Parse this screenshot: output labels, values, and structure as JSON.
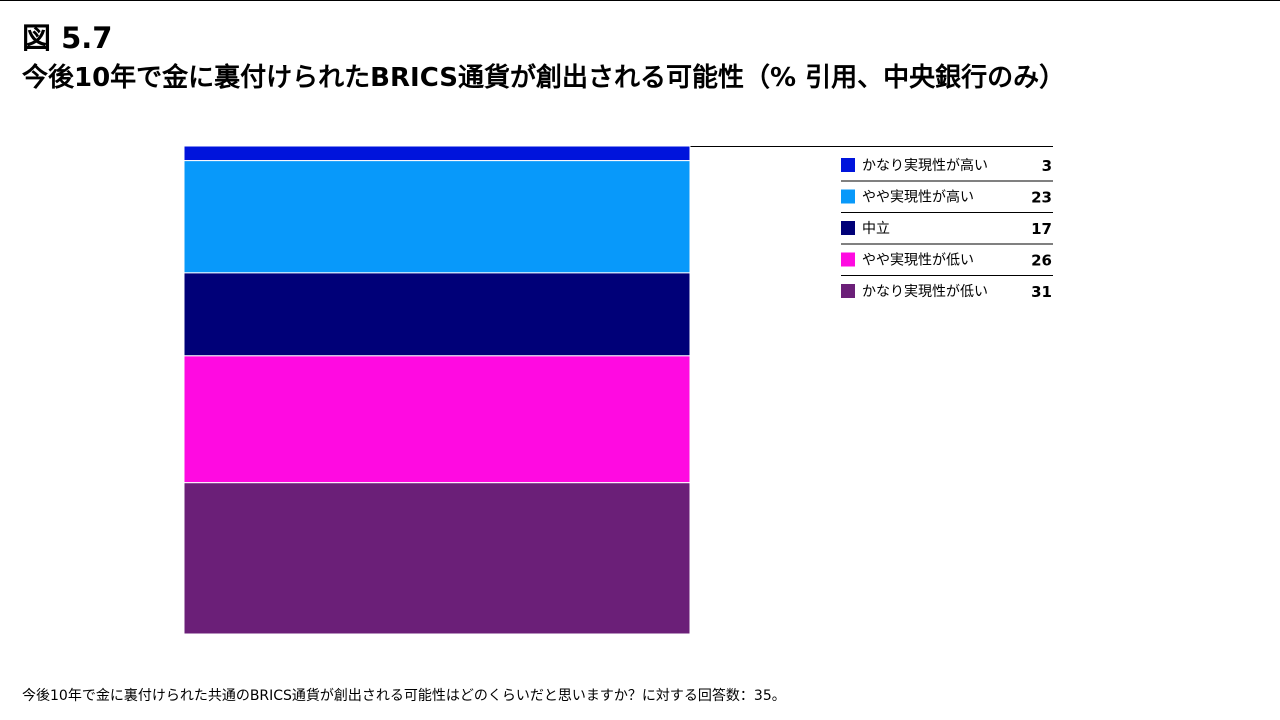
{
  "figure": {
    "label": "図 5.7",
    "title": "今後10年で金に裏付けられたBRICS通貨が創出される可能性（% 引用、中央銀行のみ）",
    "footnote": "今後10年で金に裏付けられた共通のBRICS通貨が創出される可能性はどのくらいだと思いますか？に対する回答数：35。"
  },
  "chart_data": {
    "type": "bar",
    "stacked": true,
    "orientation": "vertical",
    "title": "今後10年で金に裏付けられたBRICS通貨が創出される可能性（% 引用、中央銀行のみ）",
    "unit": "%",
    "categories": [
      ""
    ],
    "ylim": [
      0,
      100
    ],
    "grid": false,
    "legend_position": "right",
    "series": [
      {
        "name": "かなり実現性が高い",
        "values": [
          3
        ],
        "label": "3",
        "color": "#0014DC"
      },
      {
        "name": "やや実現性が高い",
        "values": [
          23
        ],
        "label": "23",
        "color": "#0899FA"
      },
      {
        "name": "中立",
        "values": [
          17
        ],
        "label": "17",
        "color": "#000078"
      },
      {
        "name": "やや実現性が低い",
        "values": [
          26
        ],
        "label": "26",
        "color": "#FF0AE1"
      },
      {
        "name": "かなり実現性が低い",
        "values": [
          31
        ],
        "label": "31",
        "color": "#6B1F78"
      }
    ]
  }
}
